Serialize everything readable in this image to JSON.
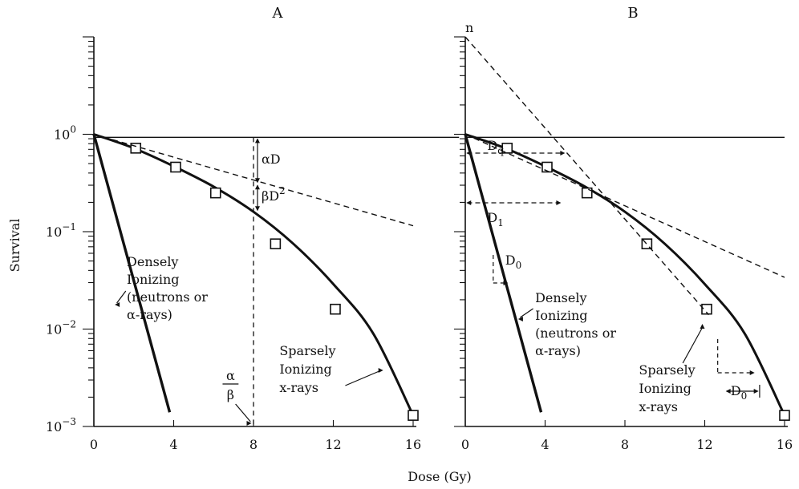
{
  "xlabel": "Dose (Gy)",
  "ylabel": "Survival",
  "chart_data": [
    {
      "panel": "A",
      "type": "line",
      "title": "A",
      "xlabel": "Dose (Gy)",
      "ylabel": "Survival",
      "x_ticks": [
        "0",
        "4",
        "8",
        "12",
        "16"
      ],
      "y_ticks": [
        {
          "base": "10",
          "exp": "0"
        },
        {
          "base": "10",
          "exp": "−1"
        },
        {
          "base": "10",
          "exp": "−2"
        },
        {
          "base": "10",
          "exp": "−3"
        }
      ],
      "xlim": [
        0,
        16
      ],
      "ylim": [
        0.001,
        10
      ],
      "yscale": "log",
      "series": [
        {
          "key": "sparse",
          "x": [
            0,
            2,
            4,
            6,
            8,
            10,
            12,
            14,
            16
          ],
          "y": [
            1,
            0.72,
            0.47,
            0.29,
            0.16,
            0.075,
            0.029,
            0.009,
            0.0013
          ]
        },
        {
          "key": "sparse-markers",
          "x": [
            2.1,
            4.1,
            6.1,
            9.1,
            12.1,
            16
          ],
          "y": [
            0.72,
            0.46,
            0.25,
            0.075,
            0.016,
            0.0013
          ]
        },
        {
          "key": "dense",
          "x": [
            0,
            3.8
          ],
          "y": [
            1,
            0.0014
          ]
        },
        {
          "key": "alpha-slope",
          "x": [
            0,
            16
          ],
          "y": [
            1,
            0.115
          ]
        },
        {
          "key": "reference",
          "x": [
            0,
            18.3
          ],
          "y": [
            0.93,
            0.93
          ]
        }
      ],
      "annotations": {
        "alpha_d": {
          "pre": "αD",
          "sup": ""
        },
        "beta_d2": {
          "pre": "βD",
          "sup": "2"
        },
        "alpha": "α",
        "beta": "β",
        "densely_lines": [
          "Densely",
          "Ionizing",
          "(neutrons or",
          "α-rays)"
        ],
        "sparsely_lines": [
          "Sparsely",
          "Ionizing",
          "x-rays"
        ]
      }
    },
    {
      "panel": "B",
      "type": "line",
      "title": "B",
      "xlabel": "Dose (Gy)",
      "x_ticks": [
        "0",
        "4",
        "8",
        "12",
        "16"
      ],
      "xlim": [
        0,
        16
      ],
      "ylim": [
        0.001,
        10
      ],
      "yscale": "log",
      "series": [
        {
          "key": "sparse",
          "x": [
            0,
            2,
            4,
            6,
            8,
            10,
            12,
            14,
            16
          ],
          "y": [
            1,
            0.72,
            0.47,
            0.29,
            0.16,
            0.075,
            0.029,
            0.009,
            0.0013
          ]
        },
        {
          "key": "sparse-markers",
          "x": [
            2.1,
            4.1,
            6.1,
            9.1,
            12.1,
            16
          ],
          "y": [
            0.72,
            0.46,
            0.25,
            0.075,
            0.016,
            0.0013
          ]
        },
        {
          "key": "dense",
          "x": [
            0,
            3.8
          ],
          "y": [
            1,
            0.0014
          ]
        },
        {
          "key": "extrapolation",
          "x": [
            0,
            12.2
          ],
          "y": [
            10,
            0.014
          ]
        },
        {
          "key": "initial-slope",
          "x": [
            0,
            16
          ],
          "y": [
            1,
            0.034
          ]
        },
        {
          "key": "reference",
          "x": [
            0,
            16
          ],
          "y": [
            0.93,
            0.93
          ]
        }
      ],
      "annotations": {
        "n": "n",
        "dq": {
          "pre": "D",
          "sub": "q"
        },
        "d1": {
          "pre": "D",
          "sub": "1"
        },
        "d0_dense": {
          "pre": "D",
          "sub": "0"
        },
        "d0_sparse": {
          "pre": "D",
          "sub": "0"
        },
        "densely_lines": [
          "Densely",
          "Ionizing",
          "(neutrons or",
          "α-rays)"
        ],
        "sparsely_lines": [
          "Sparsely",
          "Ionizing",
          "x-rays"
        ]
      }
    }
  ]
}
